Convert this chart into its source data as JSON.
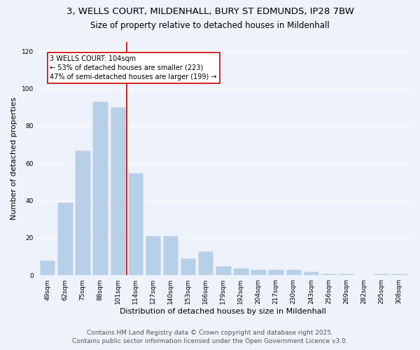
{
  "title_line1": "3, WELLS COURT, MILDENHALL, BURY ST EDMUNDS, IP28 7BW",
  "title_line2": "Size of property relative to detached houses in Mildenhall",
  "xlabel": "Distribution of detached houses by size in Mildenhall",
  "ylabel": "Number of detached properties",
  "categories": [
    "49sqm",
    "62sqm",
    "75sqm",
    "88sqm",
    "101sqm",
    "114sqm",
    "127sqm",
    "140sqm",
    "153sqm",
    "166sqm",
    "179sqm",
    "192sqm",
    "204sqm",
    "217sqm",
    "230sqm",
    "243sqm",
    "256sqm",
    "269sqm",
    "282sqm",
    "295sqm",
    "308sqm"
  ],
  "values": [
    8,
    39,
    67,
    93,
    90,
    55,
    21,
    21,
    9,
    13,
    5,
    4,
    3,
    3,
    3,
    2,
    1,
    1,
    0,
    1,
    1
  ],
  "bar_color": "#b8cfe8",
  "bar_edge_color": "#d0dff0",
  "bg_color": "#eef2fb",
  "grid_color": "#ffffff",
  "vline_x_index": 4,
  "vline_color": "#cc0000",
  "annotation_title": "3 WELLS COURT: 104sqm",
  "annotation_line1": "← 53% of detached houses are smaller (223)",
  "annotation_line2": "47% of semi-detached houses are larger (199) →",
  "annotation_box_color": "#cc0000",
  "ylim": [
    0,
    125
  ],
  "yticks": [
    0,
    20,
    40,
    60,
    80,
    100,
    120
  ],
  "footer_line1": "Contains HM Land Registry data © Crown copyright and database right 2025.",
  "footer_line2": "Contains public sector information licensed under the Open Government Licence v3.0.",
  "title_fontsize": 9.5,
  "subtitle_fontsize": 8.5,
  "axis_label_fontsize": 8,
  "tick_fontsize": 6.5,
  "annotation_fontsize": 7,
  "footer_fontsize": 6.5
}
